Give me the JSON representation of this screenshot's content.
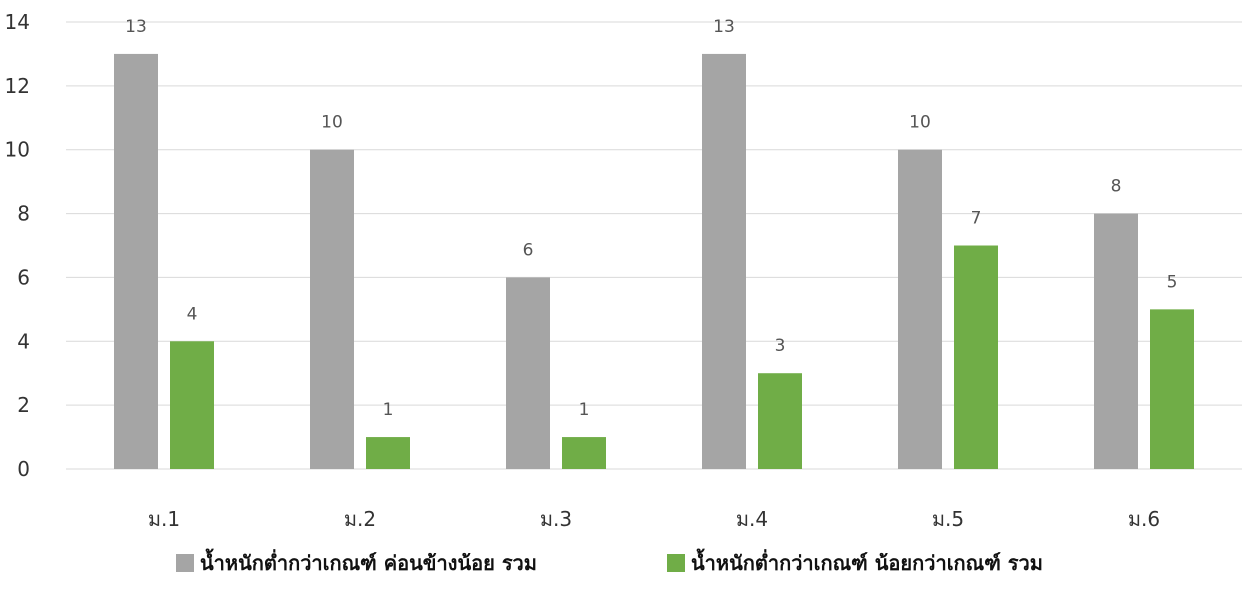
{
  "chart_data": {
    "type": "bar",
    "title": "",
    "xlabel": "",
    "ylabel": "",
    "categories": [
      "ม.1",
      "ม.2",
      "ม.3",
      "ม.4",
      "ม.5",
      "ม.6"
    ],
    "series": [
      {
        "name": "น้ำหนักต่ำกว่าเกณฑ์ ค่อนข้างน้อย รวม",
        "color": "#a5a5a5",
        "values": [
          13,
          10,
          6,
          13,
          10,
          8
        ]
      },
      {
        "name": "น้ำหนักต่ำกว่าเกณฑ์ น้อยกว่าเกณฑ์ รวม",
        "color": "#70ad47",
        "values": [
          4,
          1,
          1,
          3,
          7,
          5
        ]
      }
    ],
    "ylim": [
      0,
      14
    ],
    "yticks": [
      0,
      2,
      4,
      6,
      8,
      10,
      12,
      14
    ],
    "grid": true,
    "data_labels": true,
    "legend": "bottom"
  }
}
